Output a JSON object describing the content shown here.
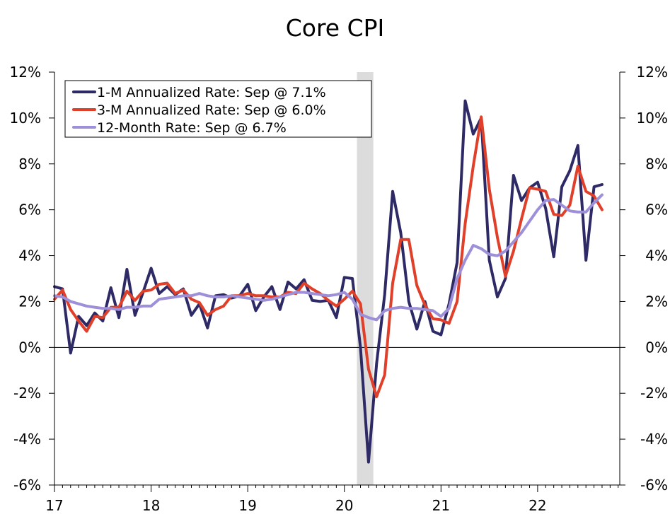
{
  "chart_data": {
    "type": "line",
    "title": "Core CPI",
    "x_start": 2017.0,
    "x_step": 0.0833333,
    "xlim": [
      2017.0,
      2022.85
    ],
    "ylim": [
      -6,
      12
    ],
    "y_ticks": [
      12,
      10,
      8,
      6,
      4,
      2,
      0,
      -2,
      -4,
      -6
    ],
    "y_tick_labels": [
      "12%",
      "10%",
      "8%",
      "6%",
      "4%",
      "2%",
      "0%",
      "-2%",
      "-4%",
      "-6%"
    ],
    "x_ticks": [
      2017,
      2018,
      2019,
      2020,
      2021,
      2022
    ],
    "x_tick_labels": [
      "17",
      "18",
      "19",
      "20",
      "21",
      "22"
    ],
    "recession": [
      2020.13,
      2020.3
    ],
    "legend_position": "top-left",
    "series": [
      {
        "name": "1-M Annualized Rate: Sep @ 7.1%",
        "color": "#2e2a66",
        "values": [
          2.65,
          2.55,
          -0.25,
          1.35,
          0.95,
          1.5,
          1.15,
          2.6,
          1.3,
          3.4,
          1.4,
          2.4,
          3.45,
          2.35,
          2.65,
          2.3,
          2.55,
          1.4,
          1.9,
          0.85,
          2.25,
          2.3,
          2.15,
          2.25,
          2.75,
          1.6,
          2.2,
          2.65,
          1.65,
          2.85,
          2.55,
          2.95,
          2.05,
          2.0,
          2.05,
          1.3,
          3.05,
          3.0,
          0.0,
          -5.0,
          -0.7,
          2.3,
          6.8,
          5.0,
          2.0,
          0.8,
          2.0,
          0.7,
          0.55,
          1.9,
          3.7,
          10.75,
          9.3,
          10.0,
          3.8,
          2.2,
          3.0,
          7.5,
          6.4,
          6.95,
          7.2,
          6.05,
          3.95,
          7.0,
          7.7,
          8.8,
          3.8,
          7.0,
          7.1
        ]
      },
      {
        "name": "3-M Annualized Rate: Sep @ 6.0%",
        "color": "#e0402a",
        "values": [
          2.1,
          2.5,
          1.65,
          1.15,
          0.7,
          1.35,
          1.3,
          1.75,
          1.75,
          2.45,
          2.05,
          2.45,
          2.5,
          2.75,
          2.8,
          2.35,
          2.5,
          2.1,
          1.95,
          1.4,
          1.65,
          1.8,
          2.25,
          2.25,
          2.35,
          2.25,
          2.25,
          2.2,
          2.2,
          2.4,
          2.35,
          2.8,
          2.55,
          2.35,
          2.05,
          1.8,
          2.1,
          2.45,
          1.9,
          -0.95,
          -2.15,
          -1.2,
          2.8,
          4.7,
          4.7,
          2.7,
          1.85,
          1.25,
          1.2,
          1.05,
          2.0,
          5.4,
          7.9,
          10.05,
          6.9,
          4.8,
          3.1,
          4.2,
          5.6,
          6.95,
          6.9,
          6.8,
          5.8,
          5.75,
          6.2,
          7.9,
          6.8,
          6.6,
          6.0
        ]
      },
      {
        "name": "12-Month Rate: Sep @ 6.7%",
        "color": "#9d8fd8",
        "values": [
          2.25,
          2.2,
          2.0,
          1.9,
          1.8,
          1.75,
          1.7,
          1.7,
          1.65,
          1.75,
          1.75,
          1.8,
          1.8,
          2.1,
          2.15,
          2.2,
          2.25,
          2.25,
          2.35,
          2.25,
          2.2,
          2.2,
          2.25,
          2.2,
          2.15,
          2.1,
          2.05,
          2.1,
          2.2,
          2.3,
          2.4,
          2.4,
          2.35,
          2.3,
          2.25,
          2.3,
          2.4,
          2.1,
          1.45,
          1.3,
          1.2,
          1.6,
          1.7,
          1.75,
          1.7,
          1.7,
          1.65,
          1.6,
          1.35,
          1.7,
          3.0,
          3.8,
          4.45,
          4.3,
          4.05,
          4.0,
          4.2,
          4.6,
          5.0,
          5.5,
          6.0,
          6.4,
          6.45,
          6.2,
          5.95,
          5.9,
          5.9,
          6.3,
          6.65
        ]
      }
    ]
  }
}
